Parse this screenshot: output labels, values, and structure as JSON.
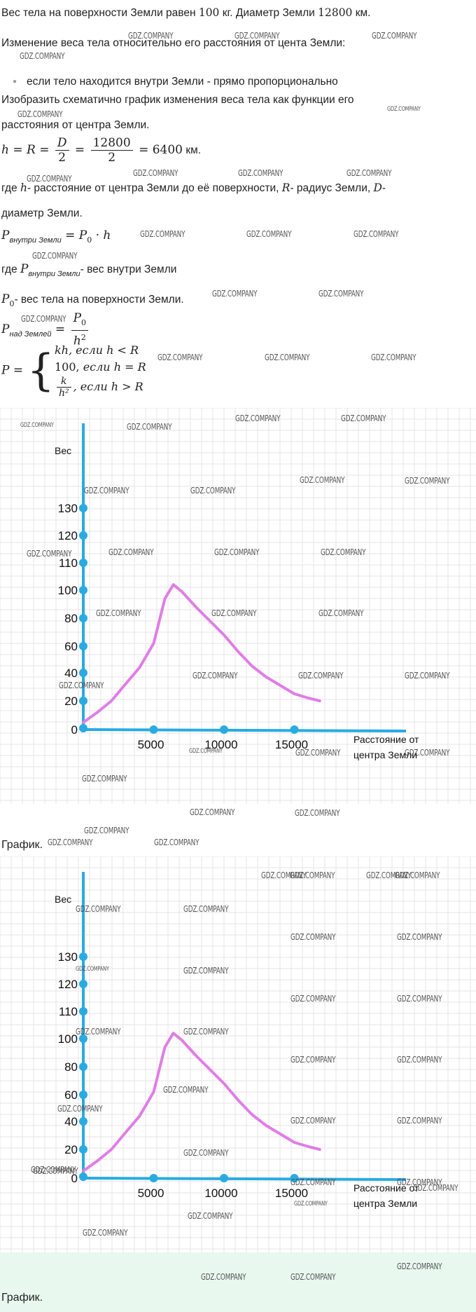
{
  "text": {
    "l1_a": "Вес тела на поверхности Земли равен ",
    "l1_m1": "100",
    "l1_b": " кг. Диаметр Земли ",
    "l1_m2": "12800",
    "l1_c": " км.",
    "l2": "Изменение веса тела относительно его расстояния от цента Земли:",
    "bullet": "если тело находится внутри Земли - прямо пропорционально",
    "l4": "Изобразить схематично график изменения веса тела как функции его",
    "l5": "расстояния от центра Земли.",
    "eq1_h": "h",
    "eq1_eq1": " = ",
    "eq1_R": "R",
    "eq1_eq2": " = ",
    "eq1_D": "D",
    "eq1_2a": "2",
    "eq1_eq3": " = ",
    "eq1_12800": "12800",
    "eq1_2b": "2",
    "eq1_res": " = 6400",
    "eq1_km": " км.",
    "l7_a": "где ",
    "l7_h": "h",
    "l7_b": "- расстояние от центра Земли до её поверхности, ",
    "l7_R": "R",
    "l7_c": "- радиус Земли, ",
    "l7_D": "D",
    "l7_d": "-",
    "l8": "диаметр Земли.",
    "eq2_P": "P",
    "eq2_sub": "внутри Земли",
    "eq2_rest_a": " = ",
    "eq2_P0": "P",
    "eq2_0": "0",
    "eq2_rest_b": " · h",
    "l10_a": "где ",
    "l10_P": "P",
    "l10_sub": "внутри Земли",
    "l10_b": "- вес внутри Земли",
    "l11_P": "P",
    "l11_0": "0",
    "l11_b": "- вес тела на поверхности Земли.",
    "eq3_P": "P",
    "eq3_sub": "над Землей",
    "eq3_eq": " = ",
    "eq3_num": "P",
    "eq3_num0": "0",
    "eq3_den": "h",
    "eq3_den2": "2",
    "eq4_P": "P",
    "eq4_eq": " = ",
    "eq4_brace": "{",
    "case1": "kh,  если h  <  R",
    "case2_a": "100,  ",
    "case2_b": "если h = R",
    "case3_num": "k",
    "case3_den": "h²",
    "case3_b": ",  если h  >  R",
    "caption1": "График.",
    "caption2": "График."
  },
  "watermark_text": "GDZ.COMPANY",
  "colors": {
    "axis": "#29abe2",
    "curve": "#e07de6",
    "grid": "#e6e6e6",
    "green": "#e8f8ee"
  },
  "chart_data": [
    {
      "type": "line",
      "title": "",
      "ylabel": "Вес",
      "xlabel": "Расстояние от центра Земли",
      "xlabel_lines": [
        "Расстояние от",
        "центра Земли"
      ],
      "y_ticks": [
        0,
        20,
        40,
        60,
        80,
        100,
        110,
        120,
        130
      ],
      "x_ticks": [
        5000,
        10000,
        15000
      ],
      "x_tick_labels": [
        "5000",
        "10000",
        "15000"
      ],
      "y_tick_labels": [
        "0",
        "20",
        "40",
        "60",
        "80",
        "100",
        "110",
        "120",
        "130"
      ],
      "series": [
        {
          "x": [
            0,
            1000,
            2000,
            3000,
            4000,
            5000,
            5800,
            6400,
            7000,
            8000,
            9000,
            10000,
            11000,
            12000,
            13000,
            14000,
            15000,
            16000,
            16800
          ],
          "y": [
            5,
            12,
            20,
            32,
            44,
            62,
            94,
            102,
            99,
            88,
            78,
            68,
            56,
            45,
            37,
            31,
            25,
            22,
            20
          ]
        }
      ],
      "grid": true
    },
    {
      "type": "line",
      "title": "",
      "ylabel": "Вес",
      "xlabel": "Расстояние от центра Земли",
      "xlabel_lines": [
        "Расстояние от",
        "центра Земли"
      ],
      "y_ticks": [
        0,
        20,
        40,
        60,
        80,
        100,
        110,
        120,
        130
      ],
      "x_ticks": [
        5000,
        10000,
        15000
      ],
      "x_tick_labels": [
        "5000",
        "10000",
        "15000"
      ],
      "y_tick_labels": [
        "0",
        "20",
        "40",
        "60",
        "80",
        "100",
        "110",
        "120",
        "130"
      ],
      "series": [
        {
          "x": [
            0,
            1000,
            2000,
            3000,
            4000,
            5000,
            5800,
            6400,
            7000,
            8000,
            9000,
            10000,
            11000,
            12000,
            13000,
            14000,
            15000,
            16000,
            16800
          ],
          "y": [
            5,
            12,
            20,
            32,
            44,
            62,
            94,
            102,
            99,
            88,
            78,
            68,
            56,
            45,
            37,
            31,
            25,
            22,
            20
          ]
        }
      ],
      "grid": true
    }
  ]
}
